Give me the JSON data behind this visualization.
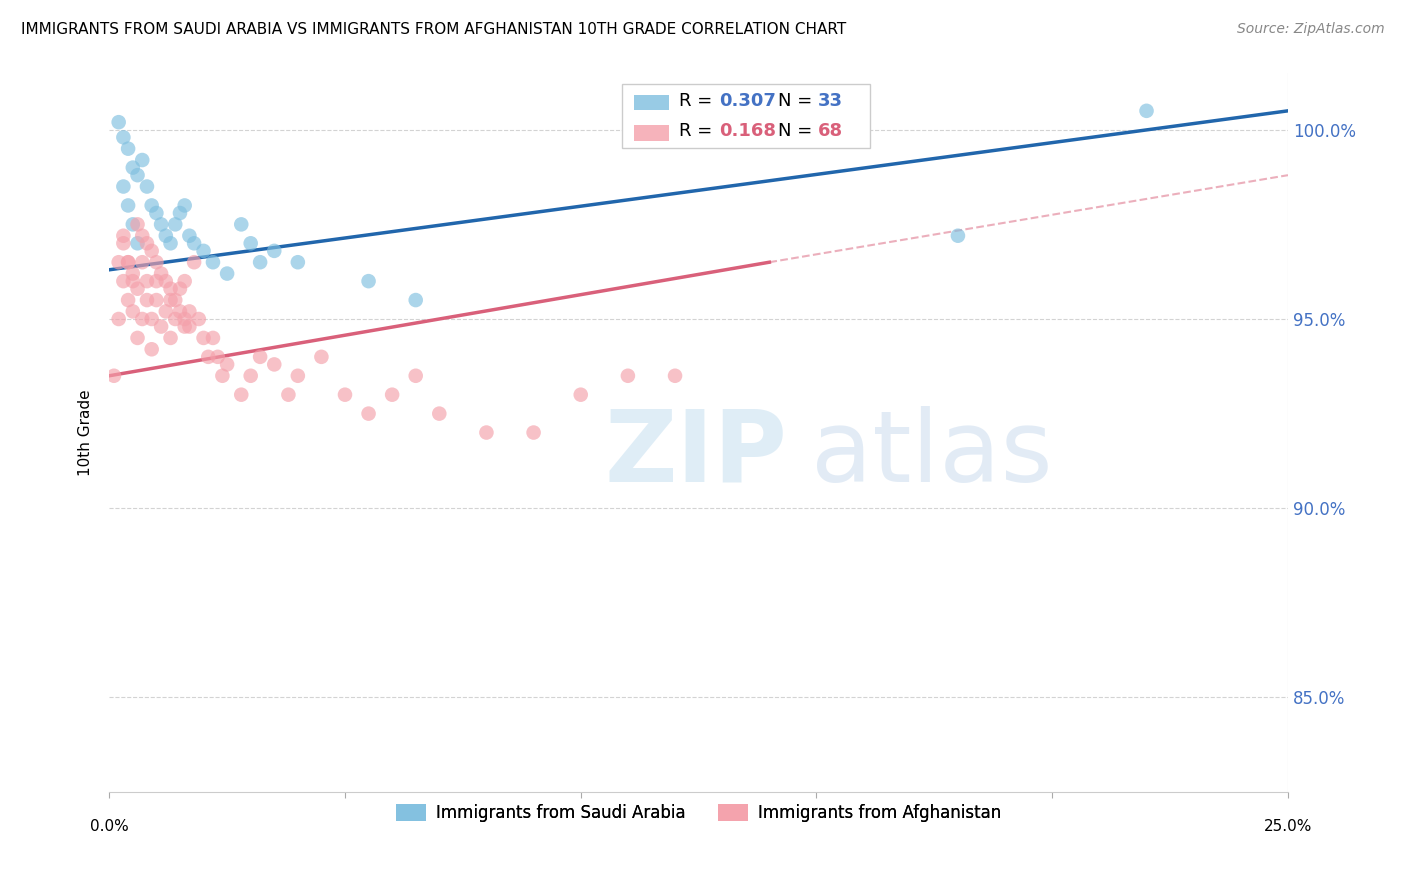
{
  "title": "IMMIGRANTS FROM SAUDI ARABIA VS IMMIGRANTS FROM AFGHANISTAN 10TH GRADE CORRELATION CHART",
  "source": "Source: ZipAtlas.com",
  "ylabel": "10th Grade",
  "xlim": [
    0.0,
    0.25
  ],
  "ylim": [
    82.5,
    101.5
  ],
  "y_ticks": [
    85,
    90,
    95,
    100
  ],
  "legend_blue_r": "0.307",
  "legend_blue_n": "33",
  "legend_pink_r": "0.168",
  "legend_pink_n": "68",
  "series1_label": "Immigrants from Saudi Arabia",
  "series2_label": "Immigrants from Afghanistan",
  "series1_color": "#7fbfdf",
  "series2_color": "#f4a0aa",
  "trendline1_color": "#2166ac",
  "trendline2_color": "#d9607a",
  "watermark_zip_color": "#cce0f0",
  "watermark_atlas_color": "#c0d8ec",
  "saudi_x": [
    0.002,
    0.003,
    0.004,
    0.005,
    0.006,
    0.007,
    0.008,
    0.009,
    0.01,
    0.011,
    0.012,
    0.013,
    0.014,
    0.015,
    0.016,
    0.017,
    0.018,
    0.02,
    0.022,
    0.025,
    0.028,
    0.03,
    0.032,
    0.035,
    0.04,
    0.055,
    0.065,
    0.18,
    0.22,
    0.003,
    0.004,
    0.005,
    0.006
  ],
  "saudi_y": [
    100.2,
    99.8,
    99.5,
    99.0,
    98.8,
    99.2,
    98.5,
    98.0,
    97.8,
    97.5,
    97.2,
    97.0,
    97.5,
    97.8,
    98.0,
    97.2,
    97.0,
    96.8,
    96.5,
    96.2,
    97.5,
    97.0,
    96.5,
    96.8,
    96.5,
    96.0,
    95.5,
    97.2,
    100.5,
    98.5,
    98.0,
    97.5,
    97.0
  ],
  "afghan_x": [
    0.001,
    0.002,
    0.002,
    0.003,
    0.003,
    0.004,
    0.004,
    0.005,
    0.005,
    0.006,
    0.006,
    0.007,
    0.007,
    0.008,
    0.008,
    0.009,
    0.009,
    0.01,
    0.01,
    0.011,
    0.012,
    0.013,
    0.013,
    0.014,
    0.015,
    0.016,
    0.016,
    0.017,
    0.018,
    0.019,
    0.02,
    0.021,
    0.022,
    0.023,
    0.024,
    0.025,
    0.028,
    0.03,
    0.032,
    0.035,
    0.038,
    0.04,
    0.045,
    0.05,
    0.055,
    0.06,
    0.065,
    0.07,
    0.08,
    0.09,
    0.1,
    0.11,
    0.12,
    0.003,
    0.004,
    0.005,
    0.006,
    0.007,
    0.008,
    0.009,
    0.01,
    0.011,
    0.012,
    0.013,
    0.014,
    0.015,
    0.016,
    0.017
  ],
  "afghan_y": [
    93.5,
    96.5,
    95.0,
    97.2,
    96.0,
    96.5,
    95.5,
    96.0,
    95.2,
    95.8,
    94.5,
    96.5,
    95.0,
    96.0,
    95.5,
    95.0,
    94.2,
    96.0,
    95.5,
    94.8,
    95.2,
    95.5,
    94.5,
    95.0,
    95.8,
    96.0,
    94.8,
    95.2,
    96.5,
    95.0,
    94.5,
    94.0,
    94.5,
    94.0,
    93.5,
    93.8,
    93.0,
    93.5,
    94.0,
    93.8,
    93.0,
    93.5,
    94.0,
    93.0,
    92.5,
    93.0,
    93.5,
    92.5,
    92.0,
    92.0,
    93.0,
    93.5,
    93.5,
    97.0,
    96.5,
    96.2,
    97.5,
    97.2,
    97.0,
    96.8,
    96.5,
    96.2,
    96.0,
    95.8,
    95.5,
    95.2,
    95.0,
    94.8
  ],
  "trendline_blue_x0": 0.0,
  "trendline_blue_y0": 96.3,
  "trendline_blue_x1": 0.25,
  "trendline_blue_y1": 100.5,
  "trendline_pink_x0": 0.0,
  "trendline_pink_y0": 93.5,
  "trendline_pink_x1": 0.14,
  "trendline_pink_y1": 96.5,
  "trendline_pink_dash_x0": 0.14,
  "trendline_pink_dash_y0": 96.5,
  "trendline_pink_dash_x1": 0.25,
  "trendline_pink_dash_y1": 98.8
}
